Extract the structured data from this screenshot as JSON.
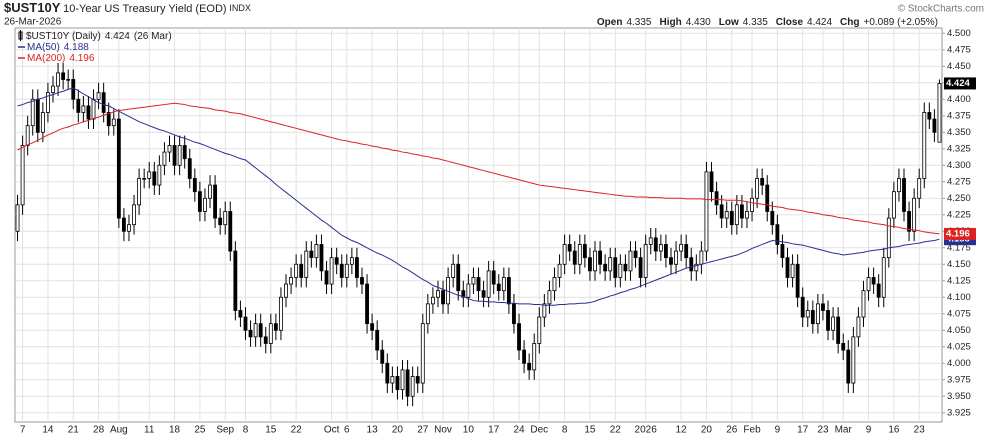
{
  "chart_data": {
    "type": "candlestick",
    "symbol": "$UST10Y",
    "title": "10-Year US Treasury Yield (EOD)",
    "exchange": "INDX",
    "watermark": "© StockCharts.com",
    "date": "26-Mar-2026",
    "summary": [
      {
        "label": "Open",
        "value": "4.335"
      },
      {
        "label": "High",
        "value": "4.430"
      },
      {
        "label": "Low",
        "value": "4.335"
      },
      {
        "label": "Close",
        "value": "4.424"
      },
      {
        "label": "Chg",
        "value": "+0.089 (+2.05%)"
      }
    ],
    "price_name": "$UST10Y (Daily)",
    "price_date": "(26 Mar)",
    "candle_color": "#000000",
    "categories": [
      null,
      "7",
      null,
      null,
      null,
      null,
      "14",
      null,
      null,
      null,
      null,
      "21",
      null,
      null,
      null,
      null,
      "28",
      null,
      null,
      null,
      "Aug",
      null,
      null,
      null,
      null,
      null,
      "11",
      null,
      null,
      null,
      null,
      "18",
      null,
      null,
      null,
      null,
      "25",
      null,
      null,
      null,
      null,
      "Sep",
      null,
      null,
      null,
      "8",
      null,
      null,
      null,
      null,
      "15",
      null,
      null,
      null,
      null,
      "22",
      null,
      null,
      null,
      null,
      null,
      null,
      "Oct",
      null,
      null,
      "6",
      null,
      null,
      null,
      null,
      "13",
      null,
      null,
      null,
      null,
      "20",
      null,
      null,
      null,
      null,
      "27",
      null,
      null,
      null,
      "Nov",
      null,
      null,
      null,
      null,
      "10",
      null,
      null,
      null,
      null,
      "17",
      null,
      null,
      null,
      null,
      "24",
      null,
      null,
      null,
      "Dec",
      null,
      null,
      null,
      null,
      "8",
      null,
      null,
      null,
      null,
      "15",
      null,
      null,
      null,
      null,
      "22",
      null,
      null,
      null,
      null,
      null,
      "2026",
      null,
      null,
      null,
      null,
      null,
      null,
      "12",
      null,
      null,
      null,
      null,
      "20",
      null,
      null,
      null,
      null,
      "26",
      null,
      null,
      null,
      "Feb",
      null,
      null,
      null,
      null,
      "9",
      null,
      null,
      null,
      null,
      "17",
      null,
      null,
      null,
      "23",
      null,
      null,
      null,
      "Mar",
      null,
      null,
      null,
      null,
      "9",
      null,
      null,
      null,
      null,
      "16",
      null,
      null,
      null,
      null,
      "23",
      null,
      null,
      null,
      null
    ],
    "open": [
      4.2,
      4.24,
      4.33,
      4.36,
      4.4,
      4.35,
      4.38,
      4.41,
      4.42,
      4.44,
      4.43,
      4.43,
      4.4,
      4.38,
      4.39,
      4.37,
      4.4,
      4.41,
      4.38,
      4.36,
      4.37,
      4.22,
      4.2,
      4.21,
      4.24,
      4.28,
      4.28,
      4.29,
      4.27,
      4.3,
      4.32,
      4.33,
      4.3,
      4.33,
      4.31,
      4.28,
      4.26,
      4.23,
      4.25,
      4.27,
      4.22,
      4.21,
      4.23,
      4.17,
      4.08,
      4.07,
      4.05,
      4.04,
      4.06,
      4.04,
      4.03,
      4.06,
      4.05,
      4.1,
      4.12,
      4.13,
      4.15,
      4.13,
      4.17,
      4.16,
      4.18,
      4.14,
      4.12,
      4.16,
      4.15,
      4.13,
      4.15,
      4.16,
      4.13,
      4.12,
      4.06,
      4.05,
      4.02,
      4.0,
      3.97,
      3.98,
      3.96,
      3.99,
      3.95,
      3.98,
      3.97,
      4.06,
      4.09,
      4.1,
      4.11,
      4.09,
      4.13,
      4.15,
      4.11,
      4.1,
      4.12,
      4.13,
      4.11,
      4.1,
      4.14,
      4.12,
      4.11,
      4.13,
      4.09,
      4.06,
      4.02,
      4.0,
      3.99,
      4.03,
      4.07,
      4.09,
      4.11,
      4.13,
      4.15,
      4.18,
      4.17,
      4.15,
      4.18,
      4.16,
      4.14,
      4.17,
      4.15,
      4.14,
      4.16,
      4.13,
      4.15,
      4.14,
      4.17,
      4.16,
      4.13,
      4.18,
      4.19,
      4.17,
      4.18,
      4.16,
      4.15,
      4.17,
      4.18,
      4.16,
      4.14,
      4.15,
      4.17,
      4.29,
      4.26,
      4.24,
      4.22,
      4.23,
      4.21,
      4.24,
      4.22,
      4.23,
      4.25,
      4.28,
      4.27,
      4.23,
      4.21,
      4.18,
      4.16,
      4.13,
      4.15,
      4.1,
      4.07,
      4.08,
      4.06,
      4.09,
      4.08,
      4.05,
      4.07,
      4.03,
      4.02,
      3.97,
      4.04,
      4.07,
      4.11,
      4.13,
      4.12,
      4.1,
      4.16,
      4.22,
      4.26,
      4.28,
      4.23,
      4.2,
      4.25,
      4.28,
      4.38,
      4.37,
      4.335
    ],
    "high": [
      4.255,
      4.345,
      4.375,
      4.415,
      4.415,
      4.395,
      4.425,
      4.435,
      4.455,
      4.455,
      4.445,
      4.445,
      4.415,
      4.405,
      4.405,
      4.415,
      4.425,
      4.425,
      4.395,
      4.385,
      4.385,
      4.235,
      4.225,
      4.255,
      4.295,
      4.295,
      4.305,
      4.305,
      4.315,
      4.335,
      4.345,
      4.345,
      4.345,
      4.345,
      4.325,
      4.295,
      4.275,
      4.265,
      4.285,
      4.285,
      4.235,
      4.245,
      4.245,
      4.185,
      4.095,
      4.085,
      4.065,
      4.075,
      4.075,
      4.055,
      4.075,
      4.075,
      4.115,
      4.135,
      4.145,
      4.165,
      4.165,
      4.185,
      4.185,
      4.195,
      4.195,
      4.155,
      4.175,
      4.175,
      4.165,
      4.165,
      4.175,
      4.175,
      4.145,
      4.135,
      4.075,
      4.065,
      4.035,
      4.015,
      3.995,
      3.995,
      4.005,
      4.005,
      3.995,
      3.995,
      4.075,
      4.105,
      4.115,
      4.125,
      4.125,
      4.145,
      4.165,
      4.165,
      4.125,
      4.135,
      4.145,
      4.145,
      4.125,
      4.155,
      4.155,
      4.135,
      4.145,
      4.145,
      4.105,
      4.075,
      4.035,
      4.015,
      4.045,
      4.085,
      4.105,
      4.125,
      4.145,
      4.165,
      4.195,
      4.195,
      4.185,
      4.195,
      4.195,
      4.175,
      4.185,
      4.185,
      4.165,
      4.175,
      4.175,
      4.165,
      4.165,
      4.185,
      4.185,
      4.175,
      4.195,
      4.205,
      4.205,
      4.195,
      4.195,
      4.175,
      4.185,
      4.195,
      4.195,
      4.175,
      4.165,
      4.185,
      4.305,
      4.305,
      4.275,
      4.255,
      4.245,
      4.245,
      4.255,
      4.255,
      4.245,
      4.265,
      4.295,
      4.295,
      4.285,
      4.245,
      4.225,
      4.195,
      4.175,
      4.165,
      4.165,
      4.115,
      4.095,
      4.095,
      4.105,
      4.105,
      4.095,
      4.085,
      4.085,
      4.045,
      4.035,
      4.055,
      4.085,
      4.125,
      4.145,
      4.145,
      4.135,
      4.175,
      4.235,
      4.275,
      4.295,
      4.295,
      4.245,
      4.265,
      4.295,
      4.395,
      4.395,
      4.385,
      4.43
    ],
    "low": [
      4.185,
      4.225,
      4.315,
      4.345,
      4.335,
      4.335,
      4.365,
      4.395,
      4.405,
      4.415,
      4.415,
      4.385,
      4.365,
      4.365,
      4.355,
      4.355,
      4.385,
      4.365,
      4.345,
      4.345,
      4.205,
      4.185,
      4.185,
      4.195,
      4.225,
      4.265,
      4.265,
      4.255,
      4.255,
      4.285,
      4.305,
      4.285,
      4.285,
      4.295,
      4.265,
      4.245,
      4.215,
      4.215,
      4.235,
      4.205,
      4.195,
      4.195,
      4.155,
      4.065,
      4.055,
      4.035,
      4.025,
      4.025,
      4.025,
      4.015,
      4.015,
      4.035,
      4.035,
      4.085,
      4.105,
      4.115,
      4.115,
      4.115,
      4.145,
      4.145,
      4.125,
      4.105,
      4.105,
      4.135,
      4.115,
      4.115,
      4.135,
      4.115,
      4.105,
      4.045,
      4.035,
      4.005,
      3.985,
      3.955,
      3.955,
      3.945,
      3.945,
      3.935,
      3.935,
      3.955,
      3.955,
      4.045,
      4.075,
      4.085,
      4.075,
      4.075,
      4.115,
      4.095,
      4.085,
      4.085,
      4.105,
      4.095,
      4.085,
      4.085,
      4.105,
      4.095,
      4.095,
      4.075,
      4.045,
      4.005,
      3.985,
      3.975,
      3.975,
      4.015,
      4.055,
      4.075,
      4.095,
      4.115,
      4.135,
      4.155,
      4.135,
      4.135,
      4.145,
      4.125,
      4.125,
      4.135,
      4.125,
      4.125,
      4.115,
      4.115,
      4.125,
      4.125,
      4.145,
      4.115,
      4.115,
      4.165,
      4.155,
      4.155,
      4.145,
      4.135,
      4.135,
      4.155,
      4.145,
      4.125,
      4.125,
      4.135,
      4.155,
      4.245,
      4.225,
      4.205,
      4.205,
      4.195,
      4.195,
      4.205,
      4.205,
      4.215,
      4.235,
      4.255,
      4.215,
      4.195,
      4.165,
      4.145,
      4.115,
      4.115,
      4.085,
      4.055,
      4.055,
      4.045,
      4.045,
      4.065,
      4.035,
      4.035,
      4.015,
      4.005,
      3.955,
      3.955,
      4.025,
      4.055,
      4.095,
      4.105,
      4.085,
      4.085,
      4.145,
      4.205,
      4.245,
      4.215,
      4.185,
      4.185,
      4.235,
      4.265,
      4.355,
      4.335,
      4.335
    ],
    "close": [
      4.24,
      4.33,
      4.36,
      4.4,
      4.35,
      4.38,
      4.41,
      4.42,
      4.44,
      4.43,
      4.43,
      4.4,
      4.38,
      4.39,
      4.37,
      4.4,
      4.41,
      4.38,
      4.36,
      4.37,
      4.22,
      4.2,
      4.21,
      4.24,
      4.28,
      4.28,
      4.29,
      4.27,
      4.3,
      4.32,
      4.33,
      4.3,
      4.33,
      4.31,
      4.28,
      4.26,
      4.23,
      4.25,
      4.27,
      4.22,
      4.21,
      4.23,
      4.17,
      4.08,
      4.07,
      4.05,
      4.04,
      4.06,
      4.04,
      4.03,
      4.06,
      4.05,
      4.1,
      4.12,
      4.13,
      4.15,
      4.13,
      4.17,
      4.16,
      4.18,
      4.14,
      4.12,
      4.16,
      4.15,
      4.13,
      4.15,
      4.16,
      4.13,
      4.12,
      4.06,
      4.05,
      4.02,
      4.0,
      3.97,
      3.98,
      3.96,
      3.99,
      3.95,
      3.98,
      3.97,
      4.06,
      4.09,
      4.1,
      4.11,
      4.09,
      4.13,
      4.15,
      4.11,
      4.1,
      4.12,
      4.13,
      4.11,
      4.1,
      4.14,
      4.12,
      4.11,
      4.13,
      4.09,
      4.06,
      4.02,
      4.0,
      3.99,
      4.03,
      4.07,
      4.09,
      4.11,
      4.13,
      4.15,
      4.18,
      4.17,
      4.15,
      4.18,
      4.16,
      4.14,
      4.17,
      4.15,
      4.14,
      4.16,
      4.13,
      4.15,
      4.14,
      4.17,
      4.16,
      4.13,
      4.18,
      4.19,
      4.17,
      4.18,
      4.16,
      4.15,
      4.17,
      4.18,
      4.16,
      4.14,
      4.15,
      4.17,
      4.29,
      4.26,
      4.24,
      4.22,
      4.23,
      4.21,
      4.24,
      4.22,
      4.23,
      4.25,
      4.28,
      4.27,
      4.23,
      4.21,
      4.18,
      4.16,
      4.13,
      4.15,
      4.1,
      4.07,
      4.08,
      4.06,
      4.09,
      4.08,
      4.05,
      4.07,
      4.03,
      4.02,
      3.97,
      4.04,
      4.07,
      4.11,
      4.13,
      4.12,
      4.1,
      4.16,
      4.22,
      4.26,
      4.28,
      4.23,
      4.2,
      4.25,
      4.28,
      4.38,
      4.37,
      4.35,
      4.424
    ],
    "series": [
      {
        "name": "MA(50)",
        "color": "#27308f",
        "values": [
          4.39,
          4.392,
          4.395,
          4.397,
          4.4,
          4.402,
          4.405,
          4.407,
          4.41,
          4.412,
          4.415,
          4.417,
          4.413,
          4.408,
          4.404,
          4.399,
          4.395,
          4.392,
          4.39,
          4.386,
          4.382,
          4.378,
          4.374,
          4.37,
          4.366,
          4.363,
          4.36,
          4.357,
          4.354,
          4.352,
          4.349,
          4.346,
          4.343,
          4.341,
          4.338,
          4.335,
          4.333,
          4.33,
          4.327,
          4.324,
          4.321,
          4.318,
          4.316,
          4.313,
          4.31,
          4.308,
          4.302,
          4.296,
          4.29,
          4.284,
          4.278,
          4.271,
          4.265,
          4.259,
          4.253,
          4.247,
          4.241,
          4.235,
          4.229,
          4.223,
          4.217,
          4.212,
          4.206,
          4.2,
          4.194,
          4.19,
          4.186,
          4.183,
          4.179,
          4.175,
          4.171,
          4.167,
          4.164,
          4.16,
          4.156,
          4.151,
          4.146,
          4.142,
          4.137,
          4.132,
          4.127,
          4.123,
          4.118,
          4.115,
          4.112,
          4.109,
          4.106,
          4.103,
          4.101,
          4.098,
          4.095,
          4.094,
          4.094,
          4.093,
          4.093,
          4.092,
          4.092,
          4.091,
          4.091,
          4.09,
          4.09,
          4.09,
          4.089,
          4.089,
          4.088,
          4.088,
          4.088,
          4.089,
          4.089,
          4.09,
          4.09,
          4.091,
          4.091,
          4.092,
          4.094,
          4.097,
          4.099,
          4.102,
          4.104,
          4.107,
          4.109,
          4.112,
          4.114,
          4.117,
          4.12,
          4.123,
          4.126,
          4.129,
          4.132,
          4.135,
          4.138,
          4.141,
          4.144,
          4.146,
          4.148,
          4.15,
          4.152,
          4.154,
          4.156,
          4.158,
          4.16,
          4.162,
          4.164,
          4.167,
          4.17,
          4.174,
          4.177,
          4.18,
          4.183,
          4.186,
          4.185,
          4.184,
          4.183,
          4.181,
          4.18,
          4.179,
          4.177,
          4.175,
          4.173,
          4.171,
          4.169,
          4.167,
          4.166,
          4.164,
          4.165,
          4.166,
          4.167,
          4.168,
          4.17,
          4.171,
          4.172,
          4.173,
          4.175,
          4.176,
          4.177,
          4.179,
          4.18,
          4.181,
          4.182,
          4.184,
          4.185,
          4.186,
          4.188
        ]
      },
      {
        "name": "MA(200)",
        "color": "#dd2222",
        "values": [
          4.323,
          4.327,
          4.331,
          4.334,
          4.338,
          4.342,
          4.346,
          4.349,
          4.353,
          4.356,
          4.358,
          4.361,
          4.363,
          4.366,
          4.368,
          4.371,
          4.373,
          4.376,
          4.378,
          4.381,
          4.383,
          4.384,
          4.385,
          4.386,
          4.387,
          4.388,
          4.389,
          4.39,
          4.391,
          4.392,
          4.393,
          4.394,
          4.393,
          4.392,
          4.39,
          4.389,
          4.388,
          4.387,
          4.386,
          4.384,
          4.383,
          4.382,
          4.38,
          4.379,
          4.378,
          4.376,
          4.374,
          4.372,
          4.37,
          4.368,
          4.366,
          4.364,
          4.362,
          4.36,
          4.358,
          4.356,
          4.354,
          4.352,
          4.35,
          4.348,
          4.346,
          4.344,
          4.342,
          4.34,
          4.338,
          4.337,
          4.335,
          4.334,
          4.332,
          4.331,
          4.329,
          4.328,
          4.326,
          4.325,
          4.323,
          4.322,
          4.32,
          4.319,
          4.317,
          4.316,
          4.314,
          4.313,
          4.311,
          4.31,
          4.308,
          4.306,
          4.304,
          4.302,
          4.3,
          4.298,
          4.296,
          4.294,
          4.292,
          4.29,
          4.288,
          4.286,
          4.284,
          4.282,
          4.28,
          4.278,
          4.276,
          4.274,
          4.272,
          4.27,
          4.269,
          4.268,
          4.267,
          4.266,
          4.265,
          4.264,
          4.263,
          4.262,
          4.261,
          4.26,
          4.259,
          4.258,
          4.257,
          4.256,
          4.255,
          4.254,
          4.253,
          4.253,
          4.252,
          4.252,
          4.252,
          4.251,
          4.251,
          4.251,
          4.25,
          4.25,
          4.25,
          4.25,
          4.249,
          4.249,
          4.249,
          4.249,
          4.248,
          4.248,
          4.248,
          4.248,
          4.247,
          4.247,
          4.247,
          4.246,
          4.245,
          4.243,
          4.242,
          4.241,
          4.24,
          4.238,
          4.237,
          4.236,
          4.234,
          4.233,
          4.232,
          4.231,
          4.229,
          4.228,
          4.227,
          4.225,
          4.224,
          4.223,
          4.221,
          4.22,
          4.219,
          4.217,
          4.216,
          4.215,
          4.214,
          4.212,
          4.211,
          4.21,
          4.208,
          4.207,
          4.206,
          4.204,
          4.203,
          4.202,
          4.201,
          4.199,
          4.198,
          4.197,
          4.196
        ]
      }
    ],
    "ylim": [
      3.911,
      4.508
    ],
    "yticks": [
      {
        "value": 4.5,
        "label": "4.500"
      },
      4.475,
      {
        "value": 4.45,
        "label": "4.450"
      },
      4.425,
      {
        "value": 4.4,
        "label": "4.400"
      },
      4.375,
      {
        "value": 4.35,
        "label": "4.350"
      },
      4.325,
      {
        "value": 4.3,
        "label": "4.300"
      },
      4.275,
      {
        "value": 4.25,
        "label": "4.250"
      },
      4.225,
      {
        "value": 4.2,
        "label": "4.200"
      },
      4.175,
      {
        "value": 4.15,
        "label": "4.150"
      },
      4.125,
      {
        "value": 4.1,
        "label": "4.100"
      },
      4.075,
      {
        "value": 4.05,
        "label": "4.050"
      },
      4.025,
      {
        "value": 4.0,
        "label": "4.000"
      },
      3.975,
      {
        "value": 3.95,
        "label": "3.950"
      },
      3.925
    ],
    "grid": true
  }
}
